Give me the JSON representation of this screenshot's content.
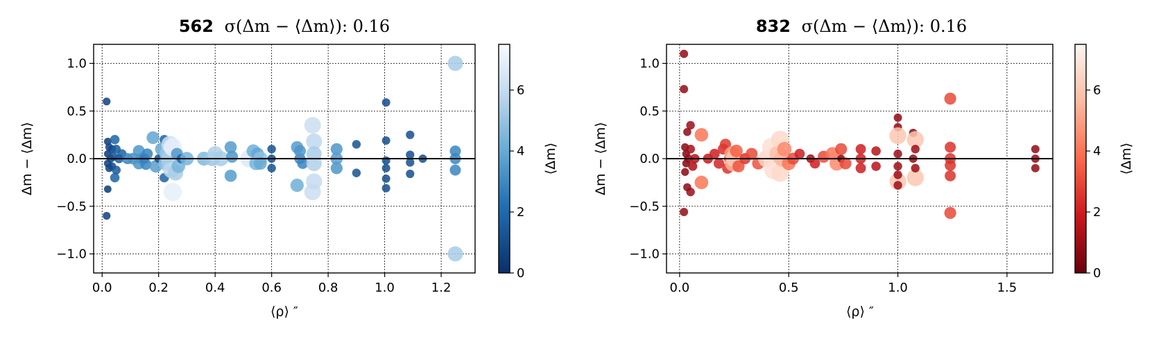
{
  "chart_data": [
    {
      "type": "scatter",
      "title_count": "562",
      "title_sigma": "σ(Δm − ⟨Δm⟩): 0.16",
      "xlabel": "⟨ρ⟩ ″",
      "ylabel": "Δm − ⟨Δm⟩",
      "xlim": [
        -0.03,
        1.32
      ],
      "ylim": [
        -1.2,
        1.2
      ],
      "xticks": [
        0.0,
        0.2,
        0.4,
        0.6,
        0.8,
        1.0,
        1.2
      ],
      "xtick_labels": [
        "0.0",
        "0.2",
        "0.4",
        "0.6",
        "0.8",
        "1.0",
        "1.2"
      ],
      "yticks": [
        1.0,
        0.5,
        0.0,
        -0.5,
        -1.0
      ],
      "ytick_labels": [
        "1.0",
        "0.5",
        "0.0",
        "−0.5",
        "−1.0"
      ],
      "colorbar": {
        "label": "⟨Δm⟩",
        "cmap": "Blues_r",
        "range": [
          0,
          7.5
        ],
        "ticks": [
          0,
          2,
          4,
          6
        ],
        "tick_labels": [
          "0",
          "2",
          "4",
          "6"
        ]
      },
      "grid": true,
      "points": [
        {
          "x": 0.016,
          "y": 0.6,
          "c": 0.5
        },
        {
          "x": 0.016,
          "y": -0.6,
          "c": 0.5
        },
        {
          "x": 0.02,
          "y": 0.18,
          "c": 0.3
        },
        {
          "x": 0.02,
          "y": -0.32,
          "c": 0.3
        },
        {
          "x": 0.02,
          "y": 0.05,
          "c": 0.3
        },
        {
          "x": 0.02,
          "y": -0.05,
          "c": 0.4
        },
        {
          "x": 0.025,
          "y": 0.12,
          "c": 0.5
        },
        {
          "x": 0.025,
          "y": -0.1,
          "c": 0.5
        },
        {
          "x": 0.03,
          "y": 0.0,
          "c": 0.6
        },
        {
          "x": 0.035,
          "y": 0.1,
          "c": 0.7
        },
        {
          "x": 0.035,
          "y": -0.08,
          "c": 0.7
        },
        {
          "x": 0.04,
          "y": 0.02,
          "c": 1.0
        },
        {
          "x": 0.045,
          "y": 0.2,
          "c": 1.5
        },
        {
          "x": 0.045,
          "y": -0.2,
          "c": 1.5
        },
        {
          "x": 0.05,
          "y": 0.1,
          "c": 1.2
        },
        {
          "x": 0.05,
          "y": -0.12,
          "c": 1.2
        },
        {
          "x": 0.06,
          "y": 0.0,
          "c": 1.3
        },
        {
          "x": 0.07,
          "y": 0.05,
          "c": 1.4
        },
        {
          "x": 0.09,
          "y": 0.0,
          "c": 2.5
        },
        {
          "x": 0.11,
          "y": 0.0,
          "c": 2.8
        },
        {
          "x": 0.13,
          "y": 0.08,
          "c": 3.0
        },
        {
          "x": 0.13,
          "y": -0.05,
          "c": 3.0
        },
        {
          "x": 0.14,
          "y": 0.0,
          "c": 2.9
        },
        {
          "x": 0.15,
          "y": 0.0,
          "c": 2.0
        },
        {
          "x": 0.155,
          "y": -0.06,
          "c": 2.5
        },
        {
          "x": 0.16,
          "y": 0.05,
          "c": 2.4
        },
        {
          "x": 0.18,
          "y": 0.22,
          "c": 3.5
        },
        {
          "x": 0.19,
          "y": -0.08,
          "c": 3.3
        },
        {
          "x": 0.2,
          "y": 0.0,
          "c": 1.0
        },
        {
          "x": 0.21,
          "y": 0.1,
          "c": 3.6
        },
        {
          "x": 0.22,
          "y": 0.2,
          "c": 1.5
        },
        {
          "x": 0.22,
          "y": -0.2,
          "c": 1.5
        },
        {
          "x": 0.225,
          "y": -0.05,
          "c": 4.5
        },
        {
          "x": 0.23,
          "y": 0.05,
          "c": 4.8
        },
        {
          "x": 0.235,
          "y": 0.0,
          "c": 5.0
        },
        {
          "x": 0.24,
          "y": 0.15,
          "c": 6.0
        },
        {
          "x": 0.245,
          "y": -0.12,
          "c": 5.5
        },
        {
          "x": 0.25,
          "y": 0.12,
          "c": 6.8
        },
        {
          "x": 0.25,
          "y": -0.35,
          "c": 6.8
        },
        {
          "x": 0.26,
          "y": -0.15,
          "c": 5.0
        },
        {
          "x": 0.265,
          "y": 0.05,
          "c": 3.0
        },
        {
          "x": 0.27,
          "y": -0.08,
          "c": 4.0
        },
        {
          "x": 0.28,
          "y": 0.0,
          "c": 1.5
        },
        {
          "x": 0.3,
          "y": 0.0,
          "c": 4.0
        },
        {
          "x": 0.36,
          "y": 0.0,
          "c": 4.2
        },
        {
          "x": 0.39,
          "y": 0.0,
          "c": 4.8
        },
        {
          "x": 0.4,
          "y": 0.05,
          "c": 5.2
        },
        {
          "x": 0.42,
          "y": 0.0,
          "c": 5.0
        },
        {
          "x": 0.455,
          "y": 0.12,
          "c": 3.2
        },
        {
          "x": 0.455,
          "y": -0.18,
          "c": 3.2
        },
        {
          "x": 0.46,
          "y": 0.02,
          "c": 3.0
        },
        {
          "x": 0.52,
          "y": 0.0,
          "c": 6.5
        },
        {
          "x": 0.535,
          "y": 0.08,
          "c": 3.8
        },
        {
          "x": 0.545,
          "y": -0.05,
          "c": 4.0
        },
        {
          "x": 0.55,
          "y": 0.05,
          "c": 3.5
        },
        {
          "x": 0.56,
          "y": 0.0,
          "c": 4.5
        },
        {
          "x": 0.56,
          "y": -0.05,
          "c": 3.6
        },
        {
          "x": 0.6,
          "y": 0.1,
          "c": 1.0
        },
        {
          "x": 0.6,
          "y": -0.1,
          "c": 1.0
        },
        {
          "x": 0.6,
          "y": 0.0,
          "c": 0.8
        },
        {
          "x": 0.69,
          "y": 0.12,
          "c": 3.2
        },
        {
          "x": 0.69,
          "y": -0.28,
          "c": 3.8
        },
        {
          "x": 0.7,
          "y": 0.0,
          "c": 2.5
        },
        {
          "x": 0.7,
          "y": 0.08,
          "c": 3.0
        },
        {
          "x": 0.71,
          "y": -0.05,
          "c": 2.5
        },
        {
          "x": 0.745,
          "y": 0.35,
          "c": 5.8
        },
        {
          "x": 0.745,
          "y": -0.35,
          "c": 5.8
        },
        {
          "x": 0.75,
          "y": 0.18,
          "c": 5.5
        },
        {
          "x": 0.75,
          "y": -0.24,
          "c": 5.6
        },
        {
          "x": 0.75,
          "y": 0.05,
          "c": 5.0
        },
        {
          "x": 0.75,
          "y": -0.05,
          "c": 5.2
        },
        {
          "x": 0.83,
          "y": 0.1,
          "c": 3.0
        },
        {
          "x": 0.83,
          "y": -0.1,
          "c": 3.0
        },
        {
          "x": 0.83,
          "y": 0.0,
          "c": 3.2
        },
        {
          "x": 0.9,
          "y": 0.15,
          "c": 1.0
        },
        {
          "x": 0.9,
          "y": -0.15,
          "c": 1.0
        },
        {
          "x": 1.005,
          "y": 0.59,
          "c": 0.8
        },
        {
          "x": 1.005,
          "y": 0.19,
          "c": 0.8
        },
        {
          "x": 1.005,
          "y": -0.02,
          "c": 0.8
        },
        {
          "x": 1.005,
          "y": -0.1,
          "c": 0.8
        },
        {
          "x": 1.005,
          "y": -0.21,
          "c": 0.8
        },
        {
          "x": 1.005,
          "y": -0.31,
          "c": 0.8
        },
        {
          "x": 1.09,
          "y": 0.25,
          "c": 0.9
        },
        {
          "x": 1.09,
          "y": 0.04,
          "c": 0.9
        },
        {
          "x": 1.09,
          "y": -0.04,
          "c": 0.9
        },
        {
          "x": 1.09,
          "y": -0.16,
          "c": 0.9
        },
        {
          "x": 1.135,
          "y": 0.0,
          "c": 0.8
        },
        {
          "x": 1.25,
          "y": 0.08,
          "c": 2.5
        },
        {
          "x": 1.25,
          "y": -0.12,
          "c": 2.5
        },
        {
          "x": 1.25,
          "y": 0.0,
          "c": 2.5
        },
        {
          "x": 1.25,
          "y": 1.0,
          "c": 5.0
        },
        {
          "x": 1.25,
          "y": -1.0,
          "c": 5.0
        }
      ]
    },
    {
      "type": "scatter",
      "title_count": "832",
      "title_sigma": "σ(Δm − ⟨Δm⟩): 0.16",
      "xlabel": "⟨ρ⟩ ″",
      "ylabel": "Δm − ⟨Δm⟩",
      "xlim": [
        -0.06,
        1.71
      ],
      "ylim": [
        -1.2,
        1.2
      ],
      "xticks": [
        0.0,
        0.5,
        1.0,
        1.5
      ],
      "xtick_labels": [
        "0.0",
        "0.5",
        "1.0",
        "1.5"
      ],
      "yticks": [
        1.0,
        0.5,
        0.0,
        -0.5,
        -1.0
      ],
      "ytick_labels": [
        "1.0",
        "0.5",
        "0.0",
        "−0.5",
        "−1.0"
      ],
      "colorbar": {
        "label": "⟨Δm⟩",
        "cmap": "Reds_r",
        "range": [
          0,
          7.5
        ],
        "ticks": [
          0,
          2,
          4,
          6
        ],
        "tick_labels": [
          "0",
          "2",
          "4",
          "6"
        ]
      },
      "grid": true,
      "points": [
        {
          "x": 0.02,
          "y": 1.1,
          "c": 0.8
        },
        {
          "x": 0.02,
          "y": 0.73,
          "c": 0.8
        },
        {
          "x": 0.02,
          "y": -0.56,
          "c": 0.8
        },
        {
          "x": 0.025,
          "y": 0.12,
          "c": 0.6
        },
        {
          "x": 0.025,
          "y": -0.14,
          "c": 0.6
        },
        {
          "x": 0.03,
          "y": 0.05,
          "c": 0.5
        },
        {
          "x": 0.03,
          "y": -0.05,
          "c": 0.5
        },
        {
          "x": 0.035,
          "y": 0.28,
          "c": 0.7
        },
        {
          "x": 0.035,
          "y": -0.3,
          "c": 0.7
        },
        {
          "x": 0.04,
          "y": 0.0,
          "c": 0.9
        },
        {
          "x": 0.05,
          "y": 0.35,
          "c": 1.0
        },
        {
          "x": 0.05,
          "y": -0.35,
          "c": 1.0
        },
        {
          "x": 0.05,
          "y": 0.1,
          "c": 1.2
        },
        {
          "x": 0.06,
          "y": -0.08,
          "c": 1.3
        },
        {
          "x": 0.07,
          "y": 0.0,
          "c": 1.4
        },
        {
          "x": 0.1,
          "y": 0.25,
          "c": 4.0
        },
        {
          "x": 0.1,
          "y": -0.25,
          "c": 4.0
        },
        {
          "x": 0.13,
          "y": 0.0,
          "c": 1.8
        },
        {
          "x": 0.16,
          "y": 0.05,
          "c": 2.0
        },
        {
          "x": 0.18,
          "y": -0.05,
          "c": 2.2
        },
        {
          "x": 0.2,
          "y": 0.1,
          "c": 2.4
        },
        {
          "x": 0.21,
          "y": 0.15,
          "c": 2.6
        },
        {
          "x": 0.22,
          "y": -0.1,
          "c": 2.5
        },
        {
          "x": 0.23,
          "y": 0.0,
          "c": 2.8
        },
        {
          "x": 0.24,
          "y": 0.05,
          "c": 5.0
        },
        {
          "x": 0.245,
          "y": -0.05,
          "c": 5.5
        },
        {
          "x": 0.25,
          "y": 0.0,
          "c": 6.0
        },
        {
          "x": 0.26,
          "y": 0.08,
          "c": 3.5
        },
        {
          "x": 0.27,
          "y": -0.08,
          "c": 3.2
        },
        {
          "x": 0.3,
          "y": 0.0,
          "c": 2.5
        },
        {
          "x": 0.33,
          "y": 0.05,
          "c": 3.0
        },
        {
          "x": 0.36,
          "y": -0.05,
          "c": 3.2
        },
        {
          "x": 0.4,
          "y": 0.0,
          "c": 6.5
        },
        {
          "x": 0.42,
          "y": 0.12,
          "c": 6.8
        },
        {
          "x": 0.43,
          "y": -0.12,
          "c": 6.8
        },
        {
          "x": 0.45,
          "y": 0.05,
          "c": 5.8
        },
        {
          "x": 0.46,
          "y": 0.2,
          "c": 6.6
        },
        {
          "x": 0.46,
          "y": -0.15,
          "c": 6.6
        },
        {
          "x": 0.47,
          "y": 0.0,
          "c": 5.5
        },
        {
          "x": 0.48,
          "y": 0.1,
          "c": 4.5
        },
        {
          "x": 0.5,
          "y": -0.05,
          "c": 4.0
        },
        {
          "x": 0.52,
          "y": 0.0,
          "c": 3.0
        },
        {
          "x": 0.55,
          "y": 0.05,
          "c": 2.0
        },
        {
          "x": 0.6,
          "y": 0.0,
          "c": 1.0
        },
        {
          "x": 0.62,
          "y": -0.05,
          "c": 2.0
        },
        {
          "x": 0.66,
          "y": 0.02,
          "c": 3.0
        },
        {
          "x": 0.7,
          "y": 0.05,
          "c": 4.0
        },
        {
          "x": 0.72,
          "y": -0.05,
          "c": 4.5
        },
        {
          "x": 0.74,
          "y": 0.1,
          "c": 3.0
        },
        {
          "x": 0.74,
          "y": 0.0,
          "c": 0.5
        },
        {
          "x": 0.76,
          "y": -0.05,
          "c": 3.0
        },
        {
          "x": 0.83,
          "y": 0.1,
          "c": 2.0
        },
        {
          "x": 0.83,
          "y": 0.0,
          "c": 2.0
        },
        {
          "x": 0.83,
          "y": -0.1,
          "c": 2.0
        },
        {
          "x": 0.9,
          "y": 0.08,
          "c": 1.5
        },
        {
          "x": 0.9,
          "y": -0.08,
          "c": 1.5
        },
        {
          "x": 1.0,
          "y": 0.43,
          "c": 0.8
        },
        {
          "x": 1.0,
          "y": 0.33,
          "c": 0.8
        },
        {
          "x": 1.0,
          "y": 0.24,
          "c": 6.0
        },
        {
          "x": 1.0,
          "y": -0.24,
          "c": 6.0
        },
        {
          "x": 1.0,
          "y": 0.05,
          "c": 1.0
        },
        {
          "x": 1.0,
          "y": -0.08,
          "c": 1.0
        },
        {
          "x": 1.0,
          "y": -0.17,
          "c": 1.0
        },
        {
          "x": 1.0,
          "y": -0.28,
          "c": 1.0
        },
        {
          "x": 1.07,
          "y": 0.27,
          "c": 0.8
        },
        {
          "x": 1.07,
          "y": 0.0,
          "c": 0.8
        },
        {
          "x": 1.08,
          "y": 0.2,
          "c": 6.0
        },
        {
          "x": 1.08,
          "y": -0.2,
          "c": 6.0
        },
        {
          "x": 1.08,
          "y": 0.1,
          "c": 1.0
        },
        {
          "x": 1.08,
          "y": -0.1,
          "c": 1.0
        },
        {
          "x": 1.24,
          "y": 0.63,
          "c": 3.0
        },
        {
          "x": 1.24,
          "y": -0.57,
          "c": 3.0
        },
        {
          "x": 1.24,
          "y": 0.12,
          "c": 2.5
        },
        {
          "x": 1.24,
          "y": 0.0,
          "c": 2.5
        },
        {
          "x": 1.24,
          "y": -0.07,
          "c": 2.5
        },
        {
          "x": 1.24,
          "y": -0.18,
          "c": 2.5
        },
        {
          "x": 1.63,
          "y": 0.1,
          "c": 0.8
        },
        {
          "x": 1.63,
          "y": 0.0,
          "c": 0.8
        },
        {
          "x": 1.63,
          "y": -0.1,
          "c": 0.8
        }
      ]
    }
  ]
}
